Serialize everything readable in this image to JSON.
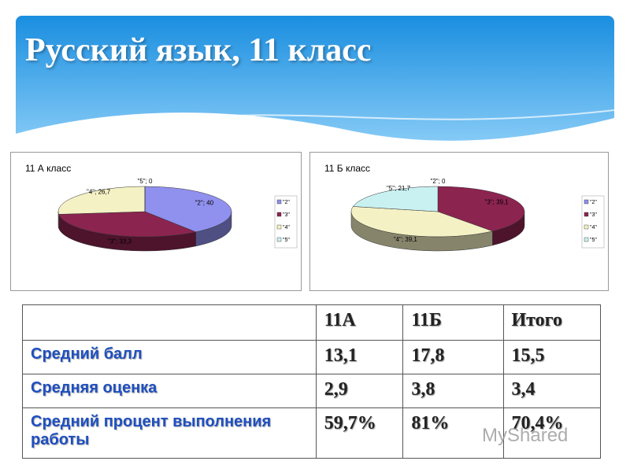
{
  "title": "Русский язык, 11 класс",
  "chart_data": [
    {
      "type": "pie",
      "title": "11 А класс",
      "categories": [
        "\"2\"",
        "\"3\"",
        "\"4\"",
        "\"5\""
      ],
      "values": [
        40,
        33.3,
        26.7,
        0
      ],
      "value_labels": [
        "\"2\"; 40",
        "\"3\"; 33,3",
        "\"4\"; 26,7",
        "\"5\"; 0"
      ],
      "colors": [
        "#9090ee",
        "#8c2450",
        "#f4f1c4",
        "#c9f1f1"
      ],
      "legend": "right"
    },
    {
      "type": "pie",
      "title": "11 Б класс",
      "categories": [
        "\"2\"",
        "\"3\"",
        "\"4\"",
        "\"5\""
      ],
      "values": [
        0,
        39.1,
        39.1,
        21.7
      ],
      "value_labels": [
        "\"2\"; 0",
        "\"3\"; 39,1",
        "\"4\"; 39,1",
        "\"5\"; 21,7"
      ],
      "colors": [
        "#9090ee",
        "#8c2450",
        "#f4f1c4",
        "#c9f1f1"
      ],
      "legend": "right"
    }
  ],
  "table": {
    "columns": [
      "11А",
      "11Б",
      "Итого"
    ],
    "rows": [
      {
        "label": "Средний балл",
        "cells": [
          "13,1",
          "17,8",
          "15,5"
        ]
      },
      {
        "label": "Средняя оценка",
        "cells": [
          "2,9",
          "3,8",
          "3,4"
        ]
      },
      {
        "label": "Средний процент выполнения работы",
        "cells": [
          "59,7%",
          "81%",
          "70,4%"
        ]
      }
    ]
  },
  "watermark": "MyShared"
}
